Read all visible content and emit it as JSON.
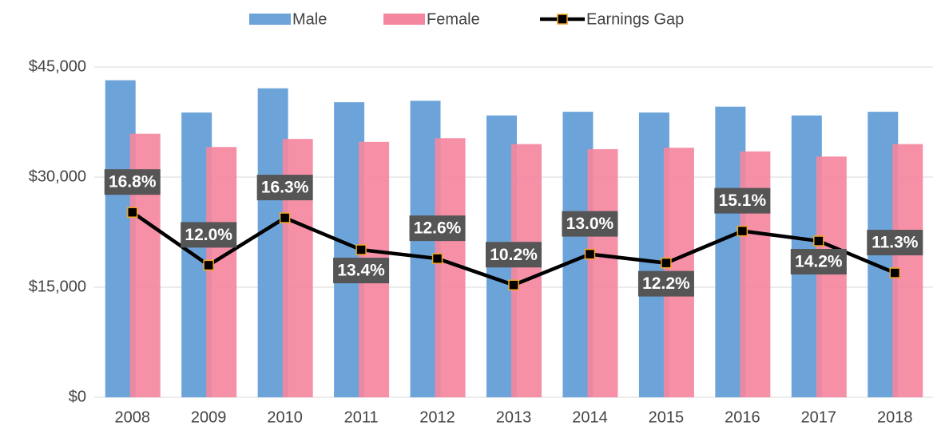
{
  "chart_data": {
    "type": "bar-line",
    "categories": [
      "2008",
      "2009",
      "2010",
      "2011",
      "2012",
      "2013",
      "2014",
      "2015",
      "2016",
      "2017",
      "2018"
    ],
    "series": [
      {
        "name": "Male",
        "color": "#6ca4da",
        "values": [
          43200,
          38800,
          42100,
          40200,
          40400,
          38400,
          38900,
          38800,
          39600,
          38400,
          38900
        ]
      },
      {
        "name": "Female",
        "color": "#f4879f",
        "values": [
          35900,
          34100,
          35200,
          34800,
          35300,
          34500,
          33800,
          34000,
          33500,
          32800,
          34500
        ]
      },
      {
        "name": "Earnings Gap",
        "color": "#000000",
        "marker_edge": "#f5a623",
        "axis": "y2",
        "type": "line",
        "values": [
          16.8,
          12.0,
          16.3,
          13.4,
          12.6,
          10.2,
          13.0,
          12.2,
          15.1,
          14.2,
          11.3
        ],
        "value_labels": [
          "16.8%",
          "12.0%",
          "16.3%",
          "13.4%",
          "12.6%",
          "10.2%",
          "13.0%",
          "12.2%",
          "15.1%",
          "14.2%",
          "11.3%"
        ]
      }
    ],
    "ylim": [
      0,
      45000
    ],
    "yticks": [
      {
        "value": 0,
        "label": "$0"
      },
      {
        "value": 15000,
        "label": "$15,000"
      },
      {
        "value": 30000,
        "label": "$30,000"
      },
      {
        "value": 45000,
        "label": "$45,000"
      }
    ],
    "y2lim": [
      0,
      30
    ],
    "grid": true,
    "legend": "top"
  }
}
